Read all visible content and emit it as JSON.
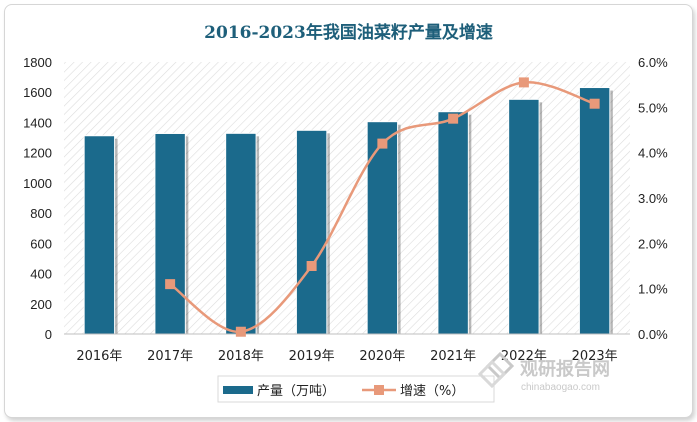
{
  "chart_data": {
    "type": "bar",
    "title": "2016-2023年我国油菜籽产量及增速",
    "categories": [
      "2016年",
      "2017年",
      "2018年",
      "2019年",
      "2020年",
      "2021年",
      "2022年",
      "2023年"
    ],
    "series": [
      {
        "name": "产量（万吨）",
        "type": "bar",
        "axis": "left",
        "color": "#1b6a8c",
        "values": [
          1312,
          1327,
          1328,
          1348,
          1405,
          1471,
          1553,
          1631
        ]
      },
      {
        "name": "增速（%）",
        "type": "line",
        "axis": "right",
        "color": "#e8997a",
        "values": [
          null,
          1.1,
          0.05,
          1.5,
          4.2,
          4.75,
          5.55,
          5.08
        ]
      }
    ],
    "y_left": {
      "min": 0,
      "max": 1800,
      "step": 200
    },
    "y_right": {
      "min": 0,
      "max": 6,
      "step": 1,
      "format": "percent_1dp"
    },
    "legend": "bottom"
  },
  "watermark": {
    "cn": "观研报告网",
    "en": "chinabaogao.com"
  }
}
